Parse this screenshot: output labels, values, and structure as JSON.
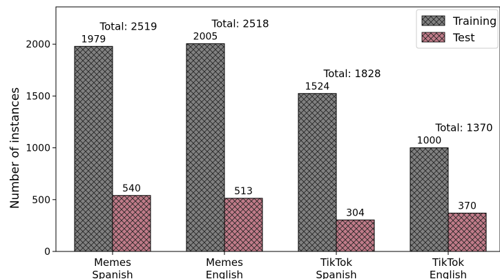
{
  "chart_data": {
    "type": "bar",
    "title": "",
    "xlabel": "",
    "ylabel": "Number of instances",
    "categories": [
      [
        "Memes",
        "Spanish"
      ],
      [
        "Memes",
        "English"
      ],
      [
        "TikTok",
        "Spanish"
      ],
      [
        "TikTok",
        "English"
      ]
    ],
    "series": [
      {
        "name": "Training",
        "values": [
          1979,
          2005,
          1524,
          1000
        ],
        "color": "#808080",
        "hatch": "xx"
      },
      {
        "name": "Test",
        "values": [
          540,
          513,
          304,
          370
        ],
        "color": "#c07b89",
        "hatch": "xx"
      }
    ],
    "totals": [
      "Total: 2519",
      "Total: 2518",
      "Total: 1828",
      "Total: 1370"
    ],
    "yticks": [
      0,
      500,
      1000,
      1500,
      2000
    ],
    "ylim": [
      0,
      2360
    ],
    "grid": false,
    "legend_position": "top-right"
  }
}
